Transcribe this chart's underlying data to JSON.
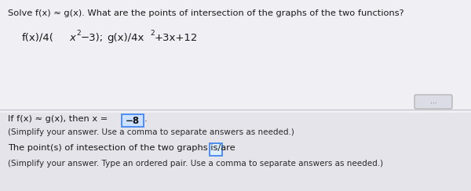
{
  "bg_color": "#e8e8ec",
  "upper_bg": "#f0f0f4",
  "lower_bg": "#e4e4ea",
  "title_line": "Solve f(x) ≈ g(x). What are the points of intersection of the graphs of the two functions?",
  "answer_line1a": "If f(x) ≈ g(x), then x = ",
  "answer_box1": "−8",
  "answer_line2": "(Simplify your answer. Use a comma to separate answers as needed.)",
  "answer_line3a": "The point(s) of intesection of the two graphs is/are",
  "answer_line4": "(Simplify your answer. Type an ordered pair. Use a comma to separate answers as needed.)",
  "sep_color": "#c0c0c8",
  "text_color": "#1a1a1a",
  "small_text_color": "#2a2a2a",
  "box_edge_color": "#4488ee",
  "box_face_color": "#cce0ff",
  "sq_face_color": "#ddeeff"
}
